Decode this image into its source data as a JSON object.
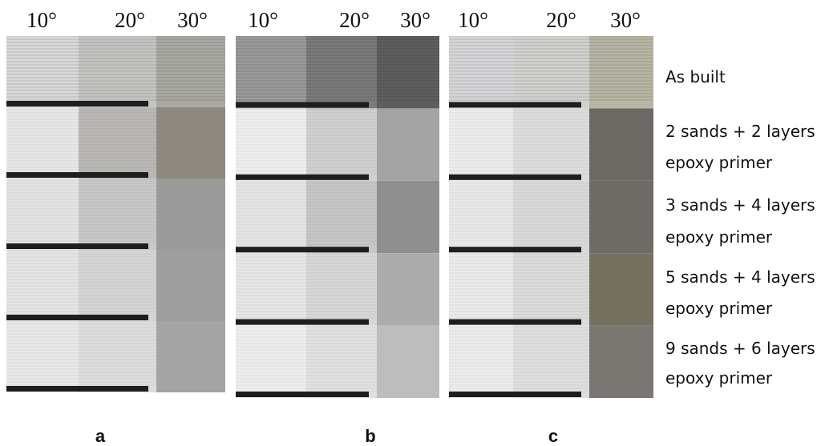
{
  "panels": [
    {
      "label": "a",
      "angles": [
        "10°",
        "20°",
        "30°"
      ]
    },
    {
      "label": "b",
      "angles": [
        "10°",
        "20°",
        "30°"
      ]
    },
    {
      "label": "c",
      "angles": [
        "10°",
        "20°",
        "30°"
      ]
    }
  ],
  "rows": [
    {
      "lines": [
        "As built"
      ]
    },
    {
      "lines": [
        "2 sands + 2 layers",
        "epoxy primer"
      ]
    },
    {
      "lines": [
        "3 sands + 4 layers",
        "epoxy primer"
      ]
    },
    {
      "lines": [
        "5 sands + 4 layers",
        "epoxy primer"
      ]
    },
    {
      "lines": [
        "9 sands + 6 layers",
        "epoxy primer"
      ]
    }
  ]
}
